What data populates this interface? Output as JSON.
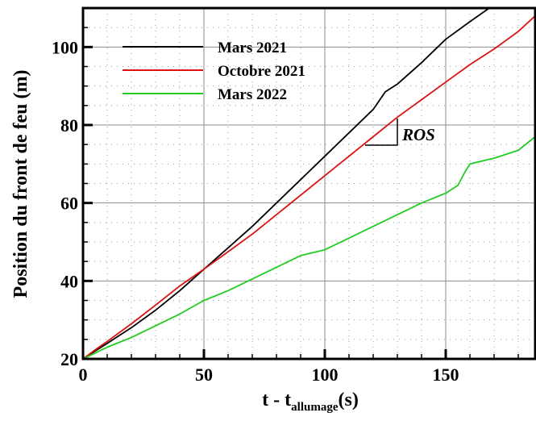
{
  "chart_data": {
    "type": "line",
    "xlabel": "t - t",
    "xlabel_sub": "allumage",
    "xlabel_suffix": "(s)",
    "ylabel": "Position du front de feu (m)",
    "xlim": [
      0,
      187
    ],
    "ylim": [
      20,
      110
    ],
    "xticks": [
      0,
      50,
      100,
      150
    ],
    "yticks": [
      20,
      40,
      60,
      80,
      100
    ],
    "grid": true,
    "legend_position": "top-left",
    "annotation": "ROS",
    "series": [
      {
        "name": "Mars 2021",
        "color": "#000000",
        "x": [
          0,
          5,
          10,
          20,
          30,
          40,
          50,
          60,
          70,
          80,
          90,
          100,
          110,
          120,
          125,
          130,
          140,
          150,
          160,
          168
        ],
        "y": [
          20,
          22,
          24,
          28,
          32.5,
          37.5,
          43,
          48.5,
          54,
          60,
          66,
          72,
          78,
          84,
          88.5,
          90.5,
          96,
          102,
          106.5,
          110
        ]
      },
      {
        "name": "Octobre 2021",
        "color": "#dd1111",
        "x": [
          0,
          5,
          10,
          20,
          30,
          40,
          50,
          60,
          70,
          80,
          90,
          100,
          110,
          120,
          130,
          140,
          150,
          160,
          170,
          180,
          187
        ],
        "y": [
          20,
          22.3,
          24.5,
          29,
          33.8,
          38.7,
          43,
          47.5,
          52,
          57,
          62,
          67,
          72,
          77,
          82,
          86.5,
          91,
          95.5,
          99.5,
          104,
          108
        ]
      },
      {
        "name": "Mars 2022",
        "color": "#22cc22",
        "x": [
          0,
          5,
          10,
          20,
          30,
          40,
          50,
          60,
          70,
          80,
          90,
          100,
          110,
          120,
          130,
          140,
          150,
          155,
          158,
          160,
          170,
          180,
          187
        ],
        "y": [
          20,
          21.5,
          23,
          25.5,
          28.5,
          31.5,
          35,
          37.5,
          40.5,
          43.5,
          46.5,
          48,
          51,
          54,
          57,
          60,
          62.5,
          64.5,
          68,
          70,
          71.5,
          73.5,
          77
        ]
      }
    ]
  }
}
